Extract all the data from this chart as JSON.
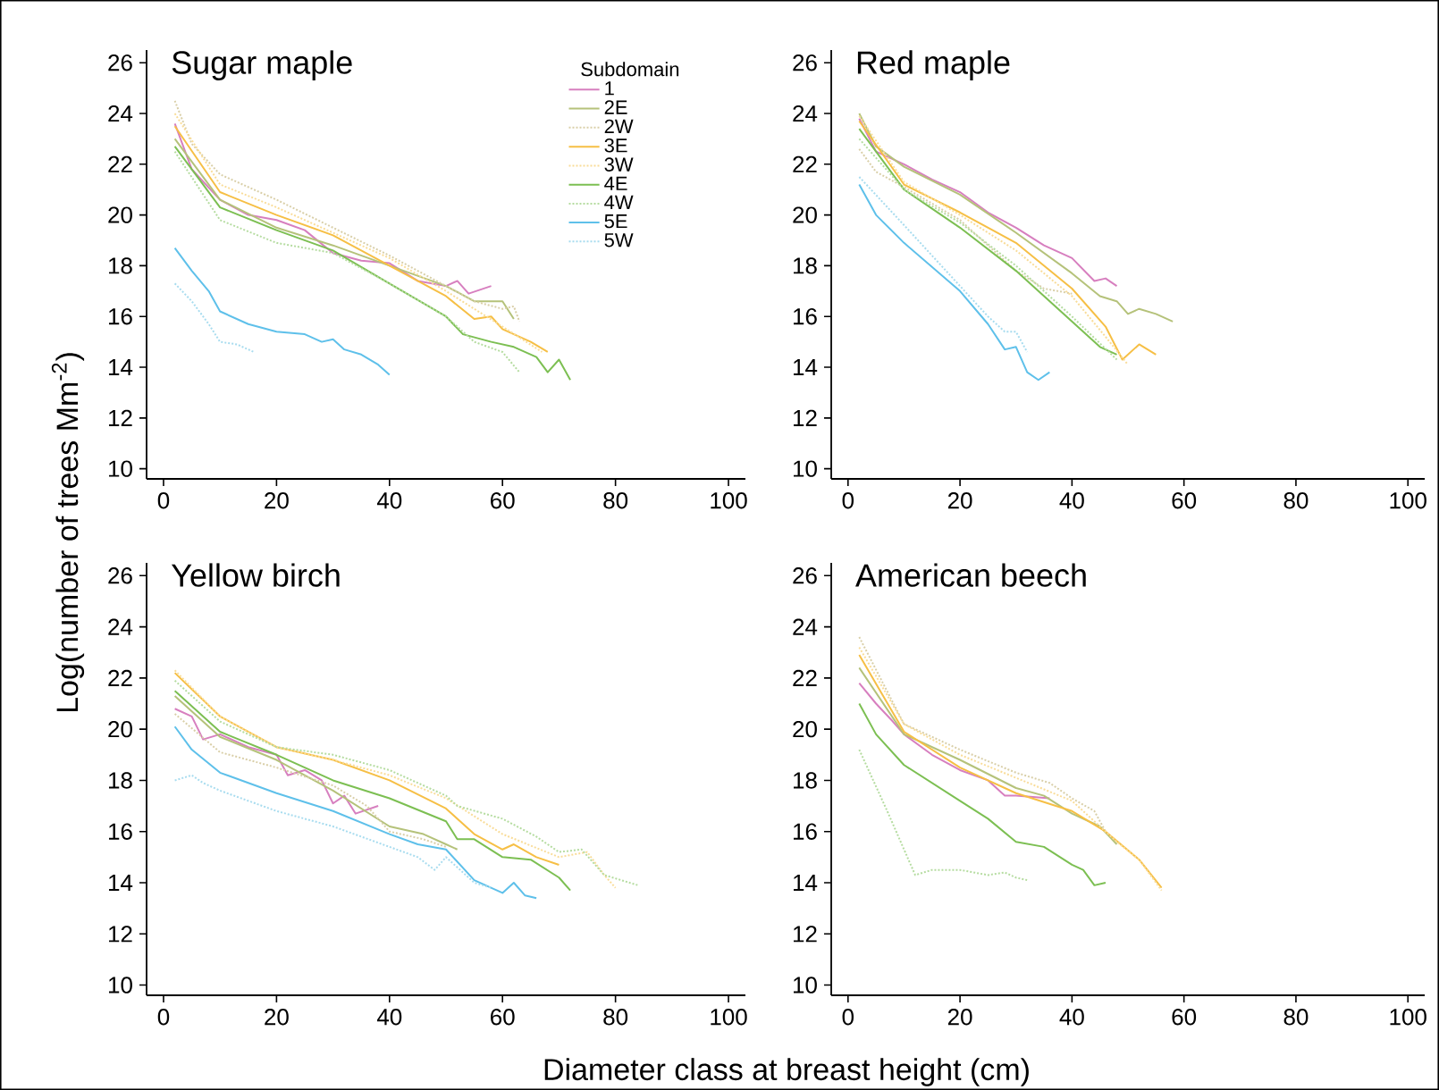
{
  "chart_data": [
    {
      "type": "line",
      "title": "Sugar maple",
      "ylabel": "Log(number of trees Mm$^{-2}$)",
      "legend_title": "Subdomain",
      "legend": "top right",
      "xlim": [
        -3,
        103
      ],
      "ylim": [
        9.6,
        26.5
      ],
      "xticks": [
        0,
        20,
        40,
        60,
        80,
        100
      ],
      "yticks": [
        10,
        12,
        14,
        16,
        18,
        20,
        22,
        24,
        26
      ],
      "series": [
        {
          "name": "1",
          "color": "#d77fbf",
          "line_style": "solid",
          "x": [
            2,
            5,
            10,
            15,
            20,
            25,
            30,
            35,
            40,
            45,
            50,
            52,
            54,
            58
          ],
          "values": [
            23.6,
            21.8,
            20.6,
            20.0,
            19.8,
            19.4,
            18.5,
            18.2,
            18.1,
            17.4,
            17.2,
            17.4,
            16.9,
            17.2
          ]
        },
        {
          "name": "2E",
          "color": "#b5c27a",
          "line_style": "solid",
          "x": [
            2,
            10,
            20,
            30,
            40,
            50,
            55,
            60,
            62
          ],
          "values": [
            23.0,
            20.6,
            19.5,
            18.8,
            18.0,
            17.2,
            16.6,
            16.6,
            15.9
          ]
        },
        {
          "name": "2W",
          "color": "#d9cfa8",
          "line_style": "dotted",
          "x": [
            2,
            5,
            10,
            20,
            30,
            40,
            50,
            55,
            60,
            62,
            63
          ],
          "values": [
            24.5,
            22.8,
            21.6,
            20.6,
            19.5,
            18.4,
            17.2,
            16.6,
            16.3,
            16.4,
            15.8
          ]
        },
        {
          "name": "3E",
          "color": "#f6bf45",
          "line_style": "solid",
          "x": [
            2,
            10,
            20,
            30,
            40,
            50,
            55,
            58,
            60,
            65,
            68
          ],
          "values": [
            23.5,
            20.9,
            20.0,
            19.2,
            18.0,
            16.8,
            15.9,
            16.0,
            15.5,
            15.0,
            14.6
          ]
        },
        {
          "name": "3W",
          "color": "#f9dc98",
          "line_style": "dotted",
          "x": [
            2,
            10,
            20,
            30,
            40,
            50,
            60,
            67
          ],
          "values": [
            24.0,
            21.2,
            20.3,
            19.3,
            18.3,
            17.0,
            15.6,
            14.6
          ]
        },
        {
          "name": "4E",
          "color": "#7cbf52",
          "line_style": "solid",
          "x": [
            2,
            10,
            20,
            30,
            40,
            50,
            53,
            58,
            62,
            66,
            68,
            70,
            72
          ],
          "values": [
            22.7,
            20.3,
            19.4,
            18.6,
            17.3,
            16.0,
            15.3,
            15.0,
            14.8,
            14.4,
            13.8,
            14.3,
            13.5
          ]
        },
        {
          "name": "4W",
          "color": "#b5dca0",
          "line_style": "dotted",
          "x": [
            2,
            10,
            20,
            30,
            40,
            50,
            55,
            60,
            63
          ],
          "values": [
            22.5,
            19.8,
            18.9,
            18.5,
            17.3,
            16.0,
            15.0,
            14.6,
            13.8
          ]
        },
        {
          "name": "5E",
          "color": "#5ec0ea",
          "line_style": "solid",
          "x": [
            2,
            5,
            8,
            10,
            15,
            20,
            25,
            28,
            30,
            32,
            35,
            38,
            40
          ],
          "values": [
            18.7,
            17.8,
            17.0,
            16.2,
            15.7,
            15.4,
            15.3,
            15.0,
            15.1,
            14.7,
            14.5,
            14.1,
            13.7
          ]
        },
        {
          "name": "5W",
          "color": "#a8dcef",
          "line_style": "dotted",
          "x": [
            2,
            5,
            8,
            10,
            13,
            16
          ],
          "values": [
            17.3,
            16.6,
            15.7,
            15.0,
            14.9,
            14.6
          ]
        }
      ]
    },
    {
      "type": "line",
      "title": "Red maple",
      "xlim": [
        -3,
        103
      ],
      "ylim": [
        9.6,
        26.5
      ],
      "xticks": [
        0,
        20,
        40,
        60,
        80,
        100
      ],
      "yticks": [
        10,
        12,
        14,
        16,
        18,
        20,
        22,
        24,
        26
      ],
      "series": [
        {
          "color": "#d77fbf",
          "line_style": "solid",
          "x": [
            2,
            5,
            10,
            15,
            20,
            25,
            30,
            35,
            40,
            44,
            46,
            48
          ],
          "values": [
            23.8,
            22.5,
            22.0,
            21.4,
            20.9,
            20.1,
            19.5,
            18.8,
            18.3,
            17.4,
            17.5,
            17.2
          ]
        },
        {
          "color": "#b5c27a",
          "line_style": "solid",
          "x": [
            2,
            5,
            10,
            20,
            30,
            40,
            45,
            48,
            50,
            52,
            55,
            58
          ],
          "values": [
            24.0,
            22.7,
            21.9,
            20.8,
            19.3,
            17.7,
            16.8,
            16.6,
            16.1,
            16.3,
            16.1,
            15.8
          ]
        },
        {
          "color": "#d9cfa8",
          "line_style": "dotted",
          "x": [
            2,
            5,
            10,
            20,
            30,
            35,
            40
          ],
          "values": [
            22.6,
            21.7,
            21.1,
            19.8,
            17.8,
            17.1,
            16.9
          ]
        },
        {
          "color": "#f6bf45",
          "line_style": "solid",
          "x": [
            2,
            10,
            20,
            30,
            40,
            46,
            49,
            52,
            55
          ],
          "values": [
            23.7,
            21.2,
            20.1,
            18.9,
            17.1,
            15.6,
            14.3,
            14.9,
            14.5
          ]
        },
        {
          "color": "#f9dc98",
          "line_style": "dotted",
          "x": [
            2,
            10,
            20,
            30,
            40,
            46,
            50
          ],
          "values": [
            23.9,
            21.3,
            20.0,
            18.6,
            16.8,
            15.2,
            14.1
          ]
        },
        {
          "color": "#7cbf52",
          "line_style": "solid",
          "x": [
            2,
            10,
            20,
            30,
            40,
            45,
            48
          ],
          "values": [
            23.4,
            21.0,
            19.5,
            17.8,
            15.8,
            14.8,
            14.5
          ]
        },
        {
          "color": "#b5dca0",
          "line_style": "dotted",
          "x": [
            2,
            10,
            20,
            30,
            40,
            48
          ],
          "values": [
            23.0,
            21.0,
            19.7,
            18.0,
            16.0,
            14.3
          ]
        },
        {
          "color": "#5ec0ea",
          "line_style": "solid",
          "x": [
            2,
            5,
            10,
            20,
            25,
            28,
            30,
            32,
            34,
            36
          ],
          "values": [
            21.2,
            20.0,
            18.9,
            17.0,
            15.7,
            14.7,
            14.8,
            13.8,
            13.5,
            13.8
          ]
        },
        {
          "color": "#a8dcef",
          "line_style": "dotted",
          "x": [
            2,
            10,
            20,
            25,
            28,
            30,
            32
          ],
          "values": [
            21.5,
            19.6,
            17.2,
            16.0,
            15.4,
            15.4,
            14.6
          ]
        }
      ]
    },
    {
      "type": "line",
      "title": "Yellow birch",
      "xlabel": "Diameter class at breast height (cm)",
      "xlim": [
        -3,
        103
      ],
      "ylim": [
        9.6,
        26.5
      ],
      "xticks": [
        0,
        20,
        40,
        60,
        80,
        100
      ],
      "yticks": [
        10,
        12,
        14,
        16,
        18,
        20,
        22,
        24,
        26
      ],
      "series": [
        {
          "color": "#d77fbf",
          "line_style": "solid",
          "x": [
            2,
            5,
            7,
            10,
            15,
            20,
            22,
            25,
            28,
            30,
            32,
            34,
            38
          ],
          "values": [
            20.8,
            20.5,
            19.6,
            19.8,
            19.3,
            19.0,
            18.2,
            18.4,
            18.0,
            17.1,
            17.4,
            16.7,
            17.0
          ]
        },
        {
          "color": "#b5c27a",
          "line_style": "solid",
          "x": [
            2,
            10,
            20,
            30,
            40,
            46,
            50,
            52
          ],
          "values": [
            21.3,
            19.7,
            18.8,
            17.6,
            16.2,
            15.9,
            15.5,
            15.3
          ]
        },
        {
          "color": "#d9cfa8",
          "line_style": "dotted",
          "x": [
            2,
            10,
            20,
            30,
            36,
            40,
            46,
            50
          ],
          "values": [
            20.6,
            19.1,
            18.5,
            17.8,
            17.0,
            16.0,
            15.7,
            15.4
          ]
        },
        {
          "color": "#f6bf45",
          "line_style": "solid",
          "x": [
            2,
            10,
            20,
            30,
            40,
            50,
            55,
            60,
            62,
            66,
            70
          ],
          "values": [
            22.2,
            20.5,
            19.3,
            18.8,
            18.0,
            16.9,
            15.9,
            15.3,
            15.5,
            15.0,
            14.7
          ]
        },
        {
          "color": "#f9dc98",
          "line_style": "dotted",
          "x": [
            2,
            10,
            20,
            30,
            40,
            50,
            60,
            70,
            75,
            78,
            80
          ],
          "values": [
            22.3,
            20.5,
            19.3,
            18.8,
            18.2,
            17.3,
            15.9,
            15.0,
            15.2,
            14.3,
            13.8
          ]
        },
        {
          "color": "#7cbf52",
          "line_style": "solid",
          "x": [
            2,
            10,
            20,
            30,
            40,
            50,
            52,
            55,
            60,
            65,
            70,
            72
          ],
          "values": [
            21.5,
            19.9,
            19.0,
            18.0,
            17.3,
            16.4,
            15.7,
            15.7,
            15.0,
            14.9,
            14.2,
            13.7
          ]
        },
        {
          "color": "#b5dca0",
          "line_style": "dotted",
          "x": [
            2,
            10,
            20,
            30,
            40,
            50,
            52,
            60,
            66,
            70,
            74,
            78,
            84
          ],
          "values": [
            21.9,
            20.3,
            19.3,
            19.0,
            18.4,
            17.4,
            17.0,
            16.5,
            15.8,
            15.2,
            15.3,
            14.3,
            13.9
          ]
        },
        {
          "color": "#5ec0ea",
          "line_style": "solid",
          "x": [
            2,
            5,
            10,
            20,
            30,
            40,
            45,
            50,
            55,
            57,
            60,
            62,
            64,
            66
          ],
          "values": [
            20.1,
            19.2,
            18.3,
            17.5,
            16.8,
            15.9,
            15.5,
            15.3,
            14.1,
            13.9,
            13.6,
            14.0,
            13.5,
            13.4
          ]
        },
        {
          "color": "#a8dcef",
          "line_style": "dotted",
          "x": [
            2,
            5,
            7,
            10,
            20,
            30,
            40,
            45,
            48,
            50,
            55,
            58
          ],
          "values": [
            18.0,
            18.2,
            17.9,
            17.6,
            16.8,
            16.2,
            15.4,
            15.0,
            14.5,
            15.0,
            14.0,
            13.8
          ]
        }
      ]
    },
    {
      "type": "line",
      "title": "American beech",
      "xlim": [
        -3,
        103
      ],
      "ylim": [
        9.6,
        26.5
      ],
      "xticks": [
        0,
        20,
        40,
        60,
        80,
        100
      ],
      "yticks": [
        10,
        12,
        14,
        16,
        18,
        20,
        22,
        24,
        26
      ],
      "series": [
        {
          "color": "#d77fbf",
          "line_style": "solid",
          "x": [
            2,
            5,
            8,
            10,
            15,
            20,
            25,
            28,
            30,
            36
          ],
          "values": [
            21.8,
            21.0,
            20.3,
            19.8,
            19.0,
            18.4,
            18.0,
            17.4,
            17.4,
            17.3
          ]
        },
        {
          "color": "#b5c27a",
          "line_style": "solid",
          "x": [
            2,
            10,
            20,
            30,
            35,
            40,
            45,
            48
          ],
          "values": [
            22.4,
            19.8,
            18.8,
            17.7,
            17.4,
            16.7,
            16.2,
            15.5
          ]
        },
        {
          "color": "#d9cfa8",
          "line_style": "dotted",
          "x": [
            2,
            10,
            20,
            30,
            36,
            40,
            44,
            46
          ],
          "values": [
            23.6,
            20.2,
            19.2,
            18.3,
            17.9,
            17.3,
            16.8,
            16.0
          ]
        },
        {
          "color": "#f6bf45",
          "line_style": "solid",
          "x": [
            2,
            10,
            20,
            30,
            40,
            46,
            52,
            56
          ],
          "values": [
            22.9,
            19.9,
            18.5,
            17.5,
            16.8,
            16.0,
            14.9,
            13.8
          ]
        },
        {
          "color": "#f9dc98",
          "line_style": "dotted",
          "x": [
            2,
            10,
            20,
            30,
            40,
            48,
            52,
            56
          ],
          "values": [
            23.2,
            20.2,
            19.0,
            18.1,
            17.2,
            15.6,
            14.9,
            13.7
          ]
        },
        {
          "color": "#7cbf52",
          "line_style": "solid",
          "x": [
            2,
            5,
            10,
            20,
            25,
            30,
            35,
            40,
            42,
            44,
            46
          ],
          "values": [
            21.0,
            19.8,
            18.6,
            17.2,
            16.5,
            15.6,
            15.4,
            14.7,
            14.5,
            13.9,
            14.0
          ]
        },
        {
          "color": "#b5dca0",
          "line_style": "dotted",
          "x": [
            2,
            7,
            12,
            15,
            20,
            25,
            28,
            30,
            32
          ],
          "values": [
            19.2,
            16.8,
            14.3,
            14.5,
            14.5,
            14.3,
            14.4,
            14.2,
            14.1
          ]
        }
      ]
    }
  ]
}
